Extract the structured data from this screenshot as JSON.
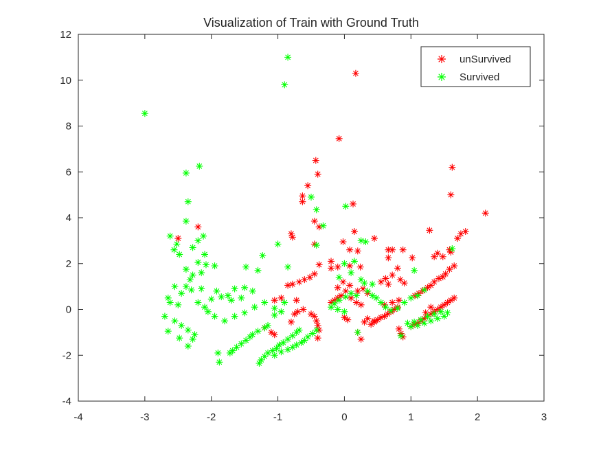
{
  "chart_data": {
    "type": "scatter",
    "title": "Visualization of Train with Ground Truth",
    "xlabel": "",
    "ylabel": "",
    "xlim": [
      -4,
      3
    ],
    "ylim": [
      -4,
      12
    ],
    "xticks": [
      -4,
      -3,
      -2,
      -1,
      0,
      1,
      2,
      3
    ],
    "yticks": [
      -4,
      -2,
      0,
      2,
      4,
      6,
      8,
      10,
      12
    ],
    "xtick_labels": [
      "-4",
      "-3",
      "-2",
      "-1",
      "0",
      "1",
      "2",
      "3"
    ],
    "ytick_labels": [
      "-4",
      "-2",
      "0",
      "2",
      "4",
      "6",
      "8",
      "10",
      "12"
    ],
    "grid": false,
    "legend_position": "top-right",
    "marker": "asterisk",
    "series": [
      {
        "name": "unSurvived",
        "color": "#ff0000",
        "points": [
          [
            0.17,
            10.3
          ],
          [
            -0.08,
            7.45
          ],
          [
            1.62,
            6.2
          ],
          [
            -0.43,
            6.5
          ],
          [
            -0.4,
            5.9
          ],
          [
            -0.55,
            5.4
          ],
          [
            1.6,
            5.0
          ],
          [
            -0.63,
            4.95
          ],
          [
            -0.63,
            4.7
          ],
          [
            0.13,
            4.6
          ],
          [
            2.12,
            4.2
          ],
          [
            -0.45,
            3.85
          ],
          [
            -0.38,
            3.6
          ],
          [
            -2.2,
            3.6
          ],
          [
            0.15,
            3.4
          ],
          [
            1.28,
            3.45
          ],
          [
            -0.8,
            3.3
          ],
          [
            -0.78,
            3.15
          ],
          [
            1.82,
            3.4
          ],
          [
            1.75,
            3.3
          ],
          [
            1.7,
            3.1
          ],
          [
            -2.5,
            3.1
          ],
          [
            -0.02,
            2.95
          ],
          [
            0.45,
            3.1
          ],
          [
            -0.45,
            2.85
          ],
          [
            0.2,
            2.55
          ],
          [
            0.08,
            2.6
          ],
          [
            0.72,
            2.6
          ],
          [
            0.66,
            2.6
          ],
          [
            0.88,
            2.6
          ],
          [
            1.58,
            2.6
          ],
          [
            1.4,
            2.45
          ],
          [
            1.35,
            2.3
          ],
          [
            1.48,
            2.3
          ],
          [
            1.02,
            2.25
          ],
          [
            0.66,
            2.25
          ],
          [
            -0.2,
            2.1
          ],
          [
            -0.1,
            1.85
          ],
          [
            0.08,
            1.9
          ],
          [
            0.24,
            1.85
          ],
          [
            0.8,
            1.8
          ],
          [
            -0.38,
            1.95
          ],
          [
            -0.2,
            1.8
          ],
          [
            1.65,
            1.9
          ],
          [
            1.58,
            1.75
          ],
          [
            1.52,
            1.55
          ],
          [
            1.48,
            1.42
          ],
          [
            1.42,
            1.35
          ],
          [
            1.35,
            1.2
          ],
          [
            1.3,
            1.05
          ],
          [
            1.25,
            0.95
          ],
          [
            1.18,
            0.82
          ],
          [
            1.12,
            0.7
          ],
          [
            1.06,
            0.6
          ],
          [
            0.72,
            1.5
          ],
          [
            0.62,
            1.35
          ],
          [
            0.55,
            1.2
          ],
          [
            0.84,
            1.3
          ],
          [
            0.9,
            1.15
          ],
          [
            0.66,
            1.1
          ],
          [
            -0.45,
            1.55
          ],
          [
            -0.52,
            1.4
          ],
          [
            -0.6,
            1.3
          ],
          [
            -0.68,
            1.2
          ],
          [
            -0.78,
            1.1
          ],
          [
            -0.85,
            1.05
          ],
          [
            -0.02,
            1.2
          ],
          [
            0.08,
            1.05
          ],
          [
            -0.1,
            0.95
          ],
          [
            0.02,
            0.8
          ],
          [
            0.2,
            0.8
          ],
          [
            0.28,
            0.9
          ],
          [
            0.35,
            0.7
          ],
          [
            -0.05,
            0.6
          ],
          [
            -0.1,
            0.5
          ],
          [
            -0.15,
            0.4
          ],
          [
            -0.2,
            0.3
          ],
          [
            0.1,
            0.5
          ],
          [
            0.18,
            0.3
          ],
          [
            0.25,
            0.2
          ],
          [
            -0.95,
            0.5
          ],
          [
            -1.05,
            0.4
          ],
          [
            -0.72,
            0.4
          ],
          [
            1.65,
            0.5
          ],
          [
            1.6,
            0.4
          ],
          [
            1.55,
            0.3
          ],
          [
            1.5,
            0.2
          ],
          [
            1.45,
            0.1
          ],
          [
            1.4,
            0.0
          ],
          [
            1.35,
            -0.1
          ],
          [
            1.3,
            -0.2
          ],
          [
            1.25,
            -0.3
          ],
          [
            1.2,
            -0.4
          ],
          [
            1.15,
            -0.5
          ],
          [
            1.1,
            -0.6
          ],
          [
            1.05,
            -0.65
          ],
          [
            1.0,
            -0.75
          ],
          [
            0.8,
            0.1
          ],
          [
            0.75,
            0.0
          ],
          [
            0.7,
            -0.1
          ],
          [
            0.65,
            -0.2
          ],
          [
            0.6,
            -0.3
          ],
          [
            0.55,
            -0.35
          ],
          [
            0.5,
            -0.45
          ],
          [
            0.45,
            -0.55
          ],
          [
            0.4,
            -0.65
          ],
          [
            0.35,
            -0.4
          ],
          [
            0.6,
            0.2
          ],
          [
            0.72,
            0.3
          ],
          [
            0.82,
            0.4
          ],
          [
            -0.45,
            -0.3
          ],
          [
            -0.42,
            -0.5
          ],
          [
            -0.4,
            -0.7
          ],
          [
            -0.38,
            -0.9
          ],
          [
            -0.5,
            -0.2
          ],
          [
            -0.62,
            0.0
          ],
          [
            -0.7,
            -0.1
          ],
          [
            -0.75,
            -0.2
          ],
          [
            0.0,
            -0.35
          ],
          [
            0.05,
            -0.45
          ],
          [
            0.2,
            -1.0
          ],
          [
            0.25,
            -1.3
          ],
          [
            -0.4,
            -1.25
          ],
          [
            -0.8,
            -0.55
          ],
          [
            -1.1,
            -1.0
          ],
          [
            -1.05,
            -1.1
          ],
          [
            -1.2,
            -0.8
          ],
          [
            0.82,
            -0.85
          ],
          [
            0.85,
            -1.05
          ],
          [
            0.88,
            -1.2
          ],
          [
            1.22,
            -0.15
          ],
          [
            1.3,
            0.1
          ],
          [
            1.6,
            2.5
          ],
          [
            0.45,
            -0.5
          ],
          [
            0.3,
            -0.55
          ]
        ]
      },
      {
        "name": "Survived",
        "color": "#00ff00",
        "points": [
          [
            -0.85,
            11.0
          ],
          [
            -0.9,
            9.8
          ],
          [
            -3.0,
            8.55
          ],
          [
            -2.18,
            6.25
          ],
          [
            -2.38,
            5.95
          ],
          [
            -0.5,
            4.9
          ],
          [
            -2.35,
            4.7
          ],
          [
            0.02,
            4.5
          ],
          [
            -0.42,
            4.35
          ],
          [
            -0.32,
            3.65
          ],
          [
            -2.38,
            3.85
          ],
          [
            -2.28,
            2.7
          ],
          [
            -2.62,
            3.2
          ],
          [
            -2.52,
            2.85
          ],
          [
            -2.12,
            3.2
          ],
          [
            -2.2,
            3.0
          ],
          [
            -1.0,
            2.85
          ],
          [
            -0.42,
            2.8
          ],
          [
            -2.48,
            2.4
          ],
          [
            -2.56,
            2.6
          ],
          [
            -1.23,
            2.35
          ],
          [
            -2.1,
            2.4
          ],
          [
            -2.2,
            2.05
          ],
          [
            -2.28,
            1.5
          ],
          [
            -2.38,
            1.75
          ],
          [
            -2.32,
            1.3
          ],
          [
            -2.15,
            1.6
          ],
          [
            -2.08,
            1.95
          ],
          [
            -1.95,
            1.9
          ],
          [
            -0.85,
            1.85
          ],
          [
            -1.48,
            1.85
          ],
          [
            -1.3,
            1.7
          ],
          [
            -2.55,
            1.0
          ],
          [
            -2.38,
            1.0
          ],
          [
            -2.3,
            0.85
          ],
          [
            -2.45,
            0.7
          ],
          [
            -2.15,
            0.9
          ],
          [
            -1.92,
            0.8
          ],
          [
            -1.75,
            0.6
          ],
          [
            -1.65,
            0.9
          ],
          [
            -1.5,
            0.95
          ],
          [
            -1.38,
            0.8
          ],
          [
            -1.55,
            0.5
          ],
          [
            -1.7,
            0.4
          ],
          [
            -1.85,
            0.55
          ],
          [
            -2.0,
            0.45
          ],
          [
            -2.65,
            0.5
          ],
          [
            -2.62,
            0.3
          ],
          [
            -2.5,
            0.2
          ],
          [
            -2.2,
            0.3
          ],
          [
            -2.1,
            0.1
          ],
          [
            -2.05,
            -0.1
          ],
          [
            -1.95,
            -0.3
          ],
          [
            -1.8,
            -0.5
          ],
          [
            -1.65,
            -0.3
          ],
          [
            -1.5,
            -0.15
          ],
          [
            -1.35,
            0.1
          ],
          [
            -1.2,
            0.3
          ],
          [
            -1.05,
            0.05
          ],
          [
            -0.9,
            0.3
          ],
          [
            -2.7,
            -0.3
          ],
          [
            -2.55,
            -0.5
          ],
          [
            -2.45,
            -0.7
          ],
          [
            -2.35,
            -0.9
          ],
          [
            -2.25,
            -1.1
          ],
          [
            -2.65,
            -0.95
          ],
          [
            -2.48,
            -1.25
          ],
          [
            -2.35,
            -1.6
          ],
          [
            -2.28,
            -1.3
          ],
          [
            -1.9,
            -1.9
          ],
          [
            -1.88,
            -2.3
          ],
          [
            -1.72,
            -1.9
          ],
          [
            -1.68,
            -1.8
          ],
          [
            -1.62,
            -1.65
          ],
          [
            -1.55,
            -1.5
          ],
          [
            -1.48,
            -1.35
          ],
          [
            -1.42,
            -1.2
          ],
          [
            -1.38,
            -1.1
          ],
          [
            -1.3,
            -0.95
          ],
          [
            -1.2,
            -0.8
          ],
          [
            -1.15,
            -0.7
          ],
          [
            -1.28,
            -2.35
          ],
          [
            -1.25,
            -2.2
          ],
          [
            -1.2,
            -2.05
          ],
          [
            -1.15,
            -1.9
          ],
          [
            -1.08,
            -1.8
          ],
          [
            -1.02,
            -1.7
          ],
          [
            -0.98,
            -1.55
          ],
          [
            -0.92,
            -1.45
          ],
          [
            -0.85,
            -1.3
          ],
          [
            -0.78,
            -1.15
          ],
          [
            -0.72,
            -1.0
          ],
          [
            -0.68,
            -0.9
          ],
          [
            -1.05,
            -2.0
          ],
          [
            -0.95,
            -1.85
          ],
          [
            -0.85,
            -1.75
          ],
          [
            -0.78,
            -1.65
          ],
          [
            -0.72,
            -1.55
          ],
          [
            -0.65,
            -1.45
          ],
          [
            -0.6,
            -1.35
          ],
          [
            -0.55,
            -1.2
          ],
          [
            -0.48,
            -1.05
          ],
          [
            -0.42,
            -0.9
          ],
          [
            0.0,
            2.0
          ],
          [
            0.15,
            2.1
          ],
          [
            0.1,
            1.6
          ],
          [
            -0.08,
            1.4
          ],
          [
            0.25,
            1.3
          ],
          [
            0.3,
            1.15
          ],
          [
            0.42,
            1.1
          ],
          [
            0.32,
            2.95
          ],
          [
            0.25,
            3.0
          ],
          [
            0.1,
            0.7
          ],
          [
            0.02,
            0.55
          ],
          [
            -0.08,
            0.4
          ],
          [
            -0.15,
            0.25
          ],
          [
            -0.2,
            0.1
          ],
          [
            -0.1,
            0.0
          ],
          [
            0.0,
            -0.1
          ],
          [
            0.18,
            0.6
          ],
          [
            0.35,
            0.8
          ],
          [
            0.42,
            0.6
          ],
          [
            0.55,
            0.3
          ],
          [
            0.62,
            0.1
          ],
          [
            0.7,
            -0.05
          ],
          [
            0.8,
            0.05
          ],
          [
            0.9,
            0.3
          ],
          [
            1.0,
            0.5
          ],
          [
            1.1,
            0.6
          ],
          [
            1.2,
            0.85
          ],
          [
            1.05,
            1.7
          ],
          [
            1.62,
            2.65
          ],
          [
            0.2,
            -1.0
          ],
          [
            0.85,
            -1.15
          ],
          [
            1.1,
            -0.7
          ],
          [
            1.2,
            -0.6
          ],
          [
            1.3,
            -0.5
          ],
          [
            1.4,
            -0.4
          ],
          [
            1.5,
            -0.3
          ],
          [
            1.55,
            -0.15
          ],
          [
            1.0,
            -0.75
          ],
          [
            1.05,
            -0.55
          ],
          [
            1.15,
            -0.45
          ],
          [
            1.25,
            -0.3
          ],
          [
            1.35,
            -0.2
          ],
          [
            1.45,
            -0.1
          ],
          [
            0.95,
            -0.6
          ],
          [
            0.48,
            0.5
          ],
          [
            -0.95,
            -0.1
          ],
          [
            -1.05,
            -0.25
          ]
        ]
      }
    ]
  }
}
